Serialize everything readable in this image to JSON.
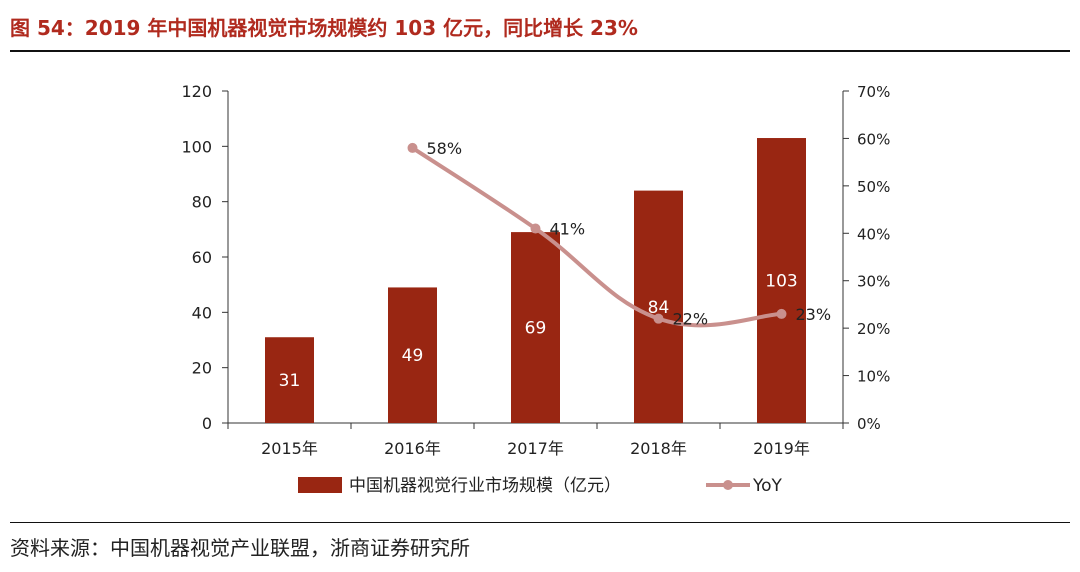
{
  "figure": {
    "title": "图 54：2019 年中国机器视觉市场规模约 103 亿元，同比增长 23%",
    "source": "资料来源：中国机器视觉产业联盟，浙商证券研究所"
  },
  "chart_data": {
    "type": "bar",
    "categories": [
      "2015年",
      "2016年",
      "2017年",
      "2018年",
      "2019年"
    ],
    "series": [
      {
        "name": "中国机器视觉行业市场规模（亿元）",
        "type": "bar",
        "axis": "left",
        "values": [
          31,
          49,
          69,
          84,
          103
        ],
        "data_labels": [
          "31",
          "49",
          "69",
          "84",
          "103"
        ]
      },
      {
        "name": "YoY",
        "type": "line",
        "axis": "right",
        "values": [
          null,
          58,
          41,
          22,
          23
        ],
        "data_labels": [
          "",
          "58%",
          "41%",
          "22%",
          "23%"
        ]
      }
    ],
    "ylim": [
      0,
      120
    ],
    "y_ticks": [
      "0",
      "20",
      "40",
      "60",
      "80",
      "100",
      "120"
    ],
    "y2lim": [
      0,
      70
    ],
    "y2_ticks": [
      "0%",
      "10%",
      "20%",
      "30%",
      "40%",
      "50%",
      "60%",
      "70%"
    ],
    "xlabel": "",
    "ylabel": "",
    "y2label": "",
    "grid": false,
    "legend_position": "bottom",
    "colors": {
      "bar": "#992612",
      "line": "#c9908d",
      "label_on_bar": "#ffffff",
      "text": "#222222"
    }
  }
}
